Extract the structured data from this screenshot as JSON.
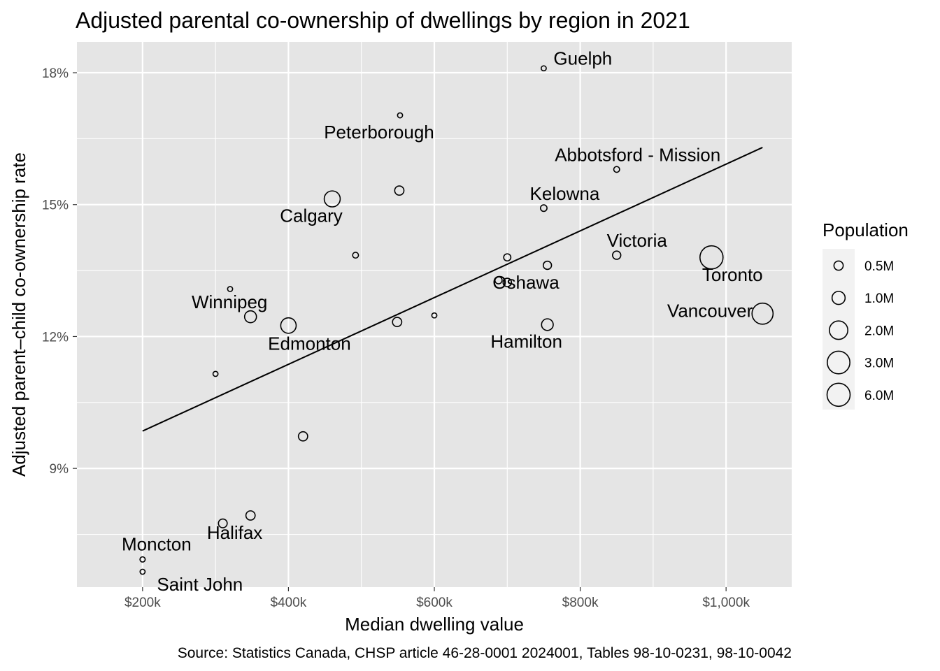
{
  "chart_data": {
    "type": "scatter",
    "title": "Adjusted parental co-ownership of dwellings by region in 2021",
    "xlabel": "Median dwelling value",
    "ylabel": "Adjusted parent–child co-ownership rate",
    "caption": "Source: Statistics Canada, CHSP article 46-28-0001 2024001, Tables 98-10-0231, 98-10-0042",
    "xlim": [
      110000,
      1090000
    ],
    "ylim": [
      6.3,
      18.7
    ],
    "x_ticks": [
      {
        "value": 200000,
        "label": "$200k"
      },
      {
        "value": 400000,
        "label": "$400k"
      },
      {
        "value": 600000,
        "label": "$600k"
      },
      {
        "value": 800000,
        "label": "$800k"
      },
      {
        "value": 1000000,
        "label": "$1,000k"
      }
    ],
    "y_ticks": [
      {
        "value": 9,
        "label": "9%"
      },
      {
        "value": 12,
        "label": "12%"
      },
      {
        "value": 15,
        "label": "15%"
      },
      {
        "value": 18,
        "label": "18%"
      }
    ],
    "grid": true,
    "background": "#e5e5e5",
    "legend": {
      "title": "Population",
      "position": "right",
      "entries": [
        {
          "label": "0.5M",
          "value": 0.5
        },
        {
          "label": "1.0M",
          "value": 1.0
        },
        {
          "label": "2.0M",
          "value": 2.0
        },
        {
          "label": "3.0M",
          "value": 3.0
        },
        {
          "label": "6.0M",
          "value": 6.0
        }
      ]
    },
    "trend_line": {
      "x": [
        200000,
        1050000
      ],
      "y": [
        9.85,
        16.3
      ]
    },
    "points": [
      {
        "x": 750000,
        "y": 18.1,
        "pop": 0.15,
        "label": "Guelph",
        "label_pos": "right"
      },
      {
        "x": 553000,
        "y": 17.03,
        "pop": 0.13,
        "label": "Peterborough",
        "label_pos": "below-left"
      },
      {
        "x": 850000,
        "y": 15.8,
        "pop": 0.2,
        "label": "Abbotsford - Mission",
        "label_pos": "above"
      },
      {
        "x": 552000,
        "y": 15.32,
        "pop": 0.5,
        "label": "",
        "label_pos": ""
      },
      {
        "x": 750000,
        "y": 14.92,
        "pop": 0.25,
        "label": "Kelowna",
        "label_pos": "above-right"
      },
      {
        "x": 460000,
        "y": 15.13,
        "pop": 1.5,
        "label": "Calgary",
        "label_pos": "below-left"
      },
      {
        "x": 492000,
        "y": 13.85,
        "pop": 0.2,
        "label": "",
        "label_pos": ""
      },
      {
        "x": 850000,
        "y": 13.85,
        "pop": 0.4,
        "label": "Victoria",
        "label_pos": "above-right"
      },
      {
        "x": 980000,
        "y": 13.8,
        "pop": 6.2,
        "label": "Toronto",
        "label_pos": "below"
      },
      {
        "x": 700000,
        "y": 13.8,
        "pop": 0.3,
        "label": "",
        "label_pos": ""
      },
      {
        "x": 755000,
        "y": 13.62,
        "pop": 0.4,
        "label": "",
        "label_pos": ""
      },
      {
        "x": 688000,
        "y": 13.28,
        "pop": 0.3,
        "label": "",
        "label_pos": ""
      },
      {
        "x": 700000,
        "y": 13.23,
        "pop": 0.42,
        "label": "Oshawa",
        "label_pos": "right"
      },
      {
        "x": 320000,
        "y": 13.08,
        "pop": 0.12,
        "label": "",
        "label_pos": ""
      },
      {
        "x": 348000,
        "y": 12.45,
        "pop": 0.83,
        "label": "Winnipeg",
        "label_pos": "above-left"
      },
      {
        "x": 1050000,
        "y": 12.52,
        "pop": 2.6,
        "label": "Vancouver",
        "label_pos": "left"
      },
      {
        "x": 600000,
        "y": 12.48,
        "pop": 0.15,
        "label": "",
        "label_pos": ""
      },
      {
        "x": 400000,
        "y": 12.25,
        "pop": 1.4,
        "label": "Edmonton",
        "label_pos": "below"
      },
      {
        "x": 549000,
        "y": 12.33,
        "pop": 0.5,
        "label": "",
        "label_pos": ""
      },
      {
        "x": 755000,
        "y": 12.27,
        "pop": 0.8,
        "label": "Hamilton",
        "label_pos": "below"
      },
      {
        "x": 300000,
        "y": 11.15,
        "pop": 0.1,
        "label": "",
        "label_pos": ""
      },
      {
        "x": 420000,
        "y": 9.73,
        "pop": 0.5,
        "label": "",
        "label_pos": ""
      },
      {
        "x": 348000,
        "y": 7.93,
        "pop": 0.5,
        "label": "",
        "label_pos": ""
      },
      {
        "x": 310000,
        "y": 7.75,
        "pop": 0.45,
        "label": "Halifax",
        "label_pos": "below-right"
      },
      {
        "x": 200000,
        "y": 6.93,
        "pop": 0.16,
        "label": "Moncton",
        "label_pos": "above-right"
      },
      {
        "x": 200000,
        "y": 6.65,
        "pop": 0.13,
        "label": "Saint John",
        "label_pos": "below-right"
      }
    ]
  }
}
